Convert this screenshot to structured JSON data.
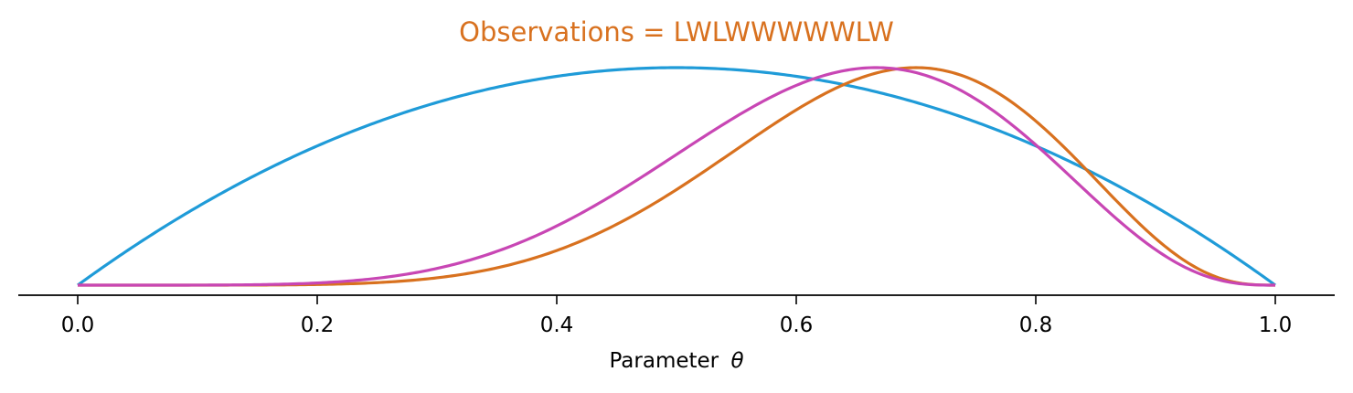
{
  "chart_data": {
    "type": "line",
    "title": "Observations = LWLWWWWWLW",
    "title_color": "#d8711f",
    "xlabel": "Parameter",
    "xlabel_symbol": "θ",
    "ylabel": "",
    "xlim": [
      -0.05,
      1.05
    ],
    "x_ticks": [
      0.0,
      0.2,
      0.4,
      0.6,
      0.8,
      1.0
    ],
    "x_tick_labels": [
      "0.0",
      "0.2",
      "0.4",
      "0.6",
      "0.8",
      "1.0"
    ],
    "y_axis_visible": false,
    "grid": false,
    "legend": "none",
    "series": [
      {
        "color": "#1f9bd8",
        "shape": "beta",
        "alpha": 2,
        "beta": 2
      },
      {
        "color": "#d8711f",
        "shape": "beta",
        "alpha": 8,
        "beta": 4
      },
      {
        "color": "#c846b4",
        "shape": "beta",
        "alpha": 7,
        "beta": 4
      }
    ],
    "normalization": "each curve scaled to the same peak height"
  }
}
